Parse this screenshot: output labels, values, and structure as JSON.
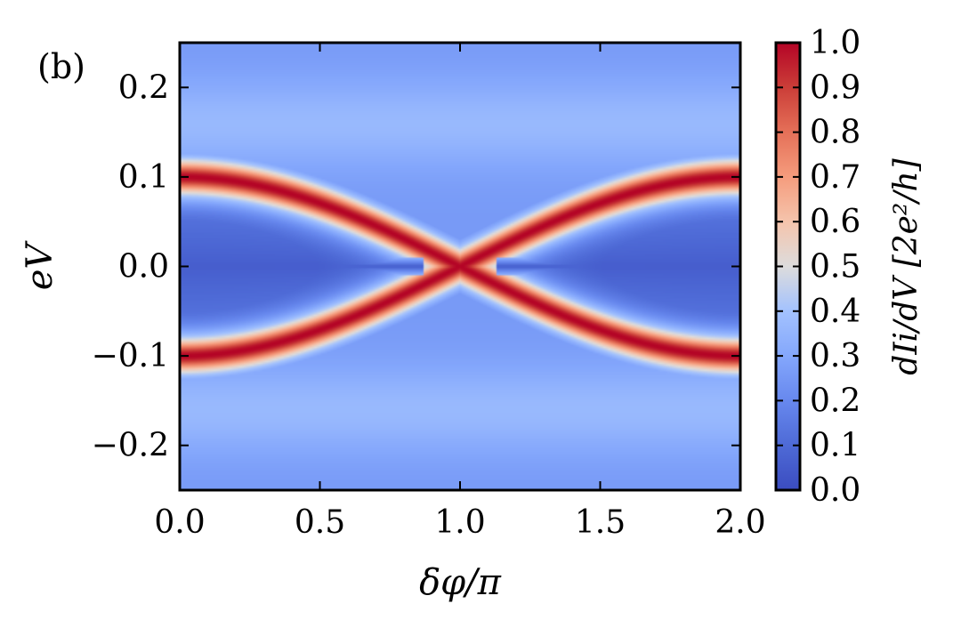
{
  "panel_label": "(b)",
  "chart_data": {
    "type": "heatmap",
    "xlabel": "δφ/π",
    "ylabel": "eV",
    "xlim": [
      0.0,
      2.0
    ],
    "ylim": [
      -0.25,
      0.25
    ],
    "x_ticks": [
      "0.0",
      "0.5",
      "1.0",
      "1.5",
      "2.0"
    ],
    "y_ticks": [
      "0.2",
      "0.1",
      "0.0",
      "−0.1",
      "−0.2"
    ],
    "colorbar": {
      "label": "dIi/dV [2e²/h]",
      "range": [
        0.0,
        1.0
      ],
      "ticks": [
        "1.0",
        "0.9",
        "0.8",
        "0.7",
        "0.6",
        "0.5",
        "0.4",
        "0.3",
        "0.2",
        "0.1",
        "0.0"
      ],
      "colormap": "coolwarm"
    },
    "bands": {
      "description_values": "peak conductance follows eV = ±0.10·|cos(δφ/2)|, crossing at eV=0 at δφ/π=1.0",
      "peak_eV_at_0": 0.1,
      "crossing_x": 1.0
    },
    "colors": {
      "low": "#3b4cc0",
      "mid": "#dddddd",
      "high": "#b40426"
    }
  }
}
